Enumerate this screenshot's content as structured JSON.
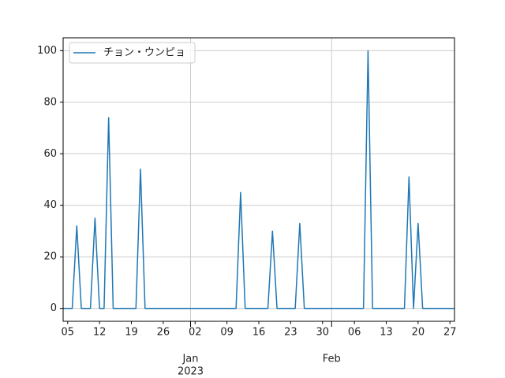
{
  "chart_data": {
    "type": "line",
    "x": [
      "2022-12-04",
      "2022-12-05",
      "2022-12-06",
      "2022-12-07",
      "2022-12-08",
      "2022-12-09",
      "2022-12-10",
      "2022-12-11",
      "2022-12-12",
      "2022-12-13",
      "2022-12-14",
      "2022-12-15",
      "2022-12-16",
      "2022-12-17",
      "2022-12-18",
      "2022-12-19",
      "2022-12-20",
      "2022-12-21",
      "2022-12-22",
      "2022-12-23",
      "2022-12-24",
      "2022-12-25",
      "2022-12-26",
      "2022-12-27",
      "2022-12-28",
      "2022-12-29",
      "2022-12-30",
      "2022-12-31",
      "2023-01-01",
      "2023-01-02",
      "2023-01-03",
      "2023-01-04",
      "2023-01-05",
      "2023-01-06",
      "2023-01-07",
      "2023-01-08",
      "2023-01-09",
      "2023-01-10",
      "2023-01-11",
      "2023-01-12",
      "2023-01-13",
      "2023-01-14",
      "2023-01-15",
      "2023-01-16",
      "2023-01-17",
      "2023-01-18",
      "2023-01-19",
      "2023-01-20",
      "2023-01-21",
      "2023-01-22",
      "2023-01-23",
      "2023-01-24",
      "2023-01-25",
      "2023-01-26",
      "2023-01-27",
      "2023-01-28",
      "2023-01-29",
      "2023-01-30",
      "2023-01-31",
      "2023-02-01",
      "2023-02-02",
      "2023-02-03",
      "2023-02-04",
      "2023-02-05",
      "2023-02-06",
      "2023-02-07",
      "2023-02-08",
      "2023-02-09",
      "2023-02-10",
      "2023-02-11",
      "2023-02-12",
      "2023-02-13",
      "2023-02-14",
      "2023-02-15",
      "2023-02-16",
      "2023-02-17",
      "2023-02-18",
      "2023-02-19",
      "2023-02-20",
      "2023-02-21",
      "2023-02-22",
      "2023-02-23",
      "2023-02-24",
      "2023-02-25",
      "2023-02-26",
      "2023-02-27",
      "2023-02-28"
    ],
    "series": [
      {
        "name": "チョン・ウンピョ",
        "color": "#1f77b4",
        "values": [
          0,
          0,
          0,
          32,
          0,
          0,
          0,
          35,
          0,
          0,
          74,
          0,
          0,
          0,
          0,
          0,
          0,
          54,
          0,
          0,
          0,
          0,
          0,
          0,
          0,
          0,
          0,
          0,
          0,
          0,
          0,
          0,
          0,
          0,
          0,
          0,
          0,
          0,
          0,
          45,
          0,
          0,
          0,
          0,
          0,
          0,
          30,
          0,
          0,
          0,
          0,
          0,
          33,
          0,
          0,
          0,
          0,
          0,
          0,
          0,
          0,
          0,
          0,
          0,
          0,
          0,
          0,
          100,
          0,
          0,
          0,
          0,
          0,
          0,
          0,
          0,
          51,
          0,
          33,
          0,
          0,
          0,
          0,
          0,
          0,
          0,
          0
        ]
      }
    ],
    "xlim": [
      "2022-12-04",
      "2023-02-28"
    ],
    "xticks": [
      {
        "value": "2022-12-05",
        "label": "05"
      },
      {
        "value": "2022-12-12",
        "label": "12"
      },
      {
        "value": "2022-12-19",
        "label": "19"
      },
      {
        "value": "2022-12-26",
        "label": "26"
      },
      {
        "value": "2023-01-02",
        "label": "02"
      },
      {
        "value": "2023-01-09",
        "label": "09"
      },
      {
        "value": "2023-01-16",
        "label": "16"
      },
      {
        "value": "2023-01-23",
        "label": "23"
      },
      {
        "value": "2023-01-30",
        "label": "30"
      },
      {
        "value": "2023-02-06",
        "label": "06"
      },
      {
        "value": "2023-02-13",
        "label": "13"
      },
      {
        "value": "2023-02-20",
        "label": "20"
      },
      {
        "value": "2023-02-27",
        "label": "27"
      }
    ],
    "xticks_major": [
      {
        "value": "2023-01-01",
        "label": "Jan",
        "sublabel": "2023"
      },
      {
        "value": "2023-02-01",
        "label": "Feb"
      }
    ],
    "ylim": [
      -5,
      105
    ],
    "yticks": [
      0,
      20,
      40,
      60,
      80,
      100
    ],
    "grid": true,
    "legend": "upper left"
  }
}
